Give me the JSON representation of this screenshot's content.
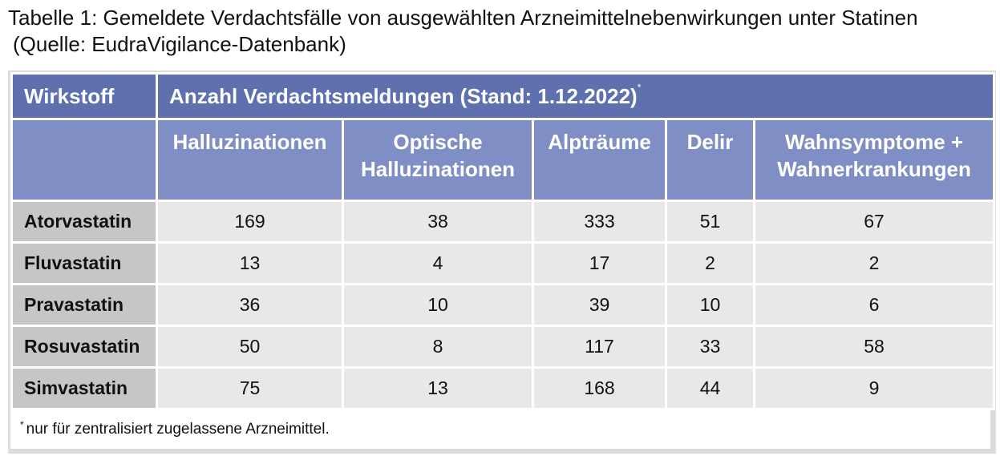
{
  "caption": {
    "line1": "Tabelle 1: Gemeldete Verdachtsfälle von ausgewählten Arzneimittelnebenwirkungen unter Statinen",
    "line2": "(Quelle: EudraVigilance-Datenbank)"
  },
  "table": {
    "header_wirkstoff": "Wirkstoff",
    "header_main": "Anzahl Verdachtsmeldungen (Stand: 1.12.2022)",
    "header_main_mark": "*",
    "columns": [
      [
        "Halluzinationen"
      ],
      [
        "Optische",
        "Halluzinationen"
      ],
      [
        "Alpträume"
      ],
      [
        "Delir"
      ],
      [
        "Wahnsymptome +",
        "Wahnerkrankungen"
      ]
    ],
    "rows": [
      {
        "name": "Atorvastatin",
        "values": [
          "169",
          "38",
          "333",
          "51",
          "67"
        ]
      },
      {
        "name": "Fluvastatin",
        "values": [
          "13",
          "4",
          "17",
          "2",
          "2"
        ]
      },
      {
        "name": "Pravastatin",
        "values": [
          "36",
          "10",
          "39",
          "10",
          "6"
        ]
      },
      {
        "name": "Rosuvastatin",
        "values": [
          "50",
          "8",
          "117",
          "33",
          "58"
        ]
      },
      {
        "name": "Simvastatin",
        "values": [
          "75",
          "13",
          "168",
          "44",
          "9"
        ]
      }
    ]
  },
  "footnote": {
    "mark": "*",
    "text": "nur für zentralisiert zugelassene Arzneimittel."
  },
  "colors": {
    "header_dark": "#5f70ae",
    "header_light": "#7f8fc5",
    "name_cell": "#c6c6c6",
    "value_cell": "#e8e8e8"
  }
}
